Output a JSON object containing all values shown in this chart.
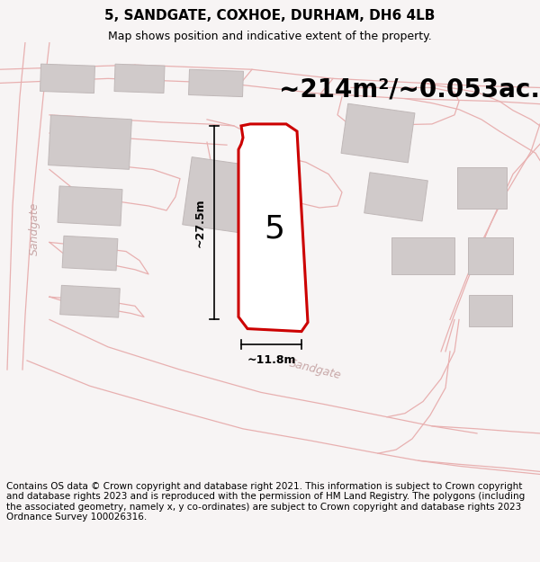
{
  "title": "5, SANDGATE, COXHOE, DURHAM, DH6 4LB",
  "subtitle": "Map shows position and indicative extent of the property.",
  "area_text": "~214m²/~0.053ac.",
  "width_label": "~11.8m",
  "height_label": "~27.5m",
  "number_label": "5",
  "street_label": "Sandgate",
  "footer_text": "Contains OS data © Crown copyright and database right 2021. This information is subject to Crown copyright and database rights 2023 and is reproduced with the permission of HM Land Registry. The polygons (including the associated geometry, namely x, y co-ordinates) are subject to Crown copyright and database rights 2023 Ordnance Survey 100026316.",
  "map_bg": "#f7f4f4",
  "road_line_color": "#e8b0b0",
  "building_face": "#d0caca",
  "building_edge": "#c0b8b8",
  "plot_color": "#cc0000",
  "title_fontsize": 11,
  "subtitle_fontsize": 9,
  "area_fontsize": 20,
  "label_fontsize": 9,
  "footer_fontsize": 7.5,
  "street_text_color": "#c8a8a8"
}
